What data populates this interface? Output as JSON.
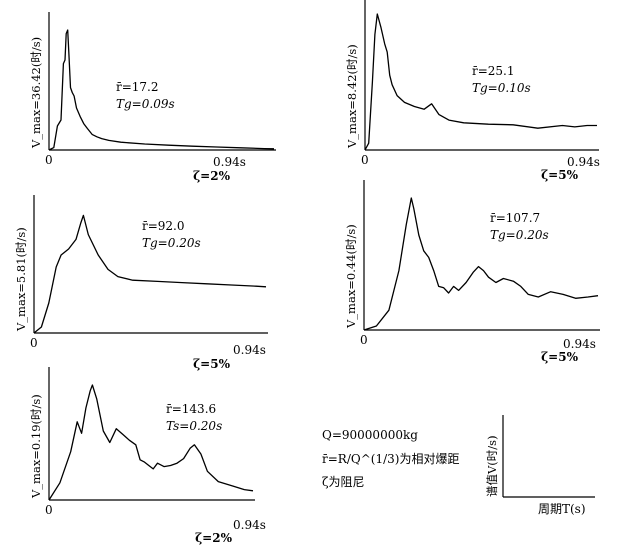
{
  "chart_data": [
    {
      "type": "line",
      "ylabel": "V_max=36.42(时/s)",
      "origin_label": "0",
      "x_end_label": "0.94s",
      "zeta_label": "ζ=2%",
      "annot_r": "r̄=17.2",
      "annot_T": "Tg=0.09s",
      "x_range": [
        0,
        0.94
      ],
      "y_range": [
        0,
        1
      ],
      "points": [
        [
          0,
          0
        ],
        [
          0.02,
          0.02
        ],
        [
          0.035,
          0.2
        ],
        [
          0.05,
          0.25
        ],
        [
          0.06,
          0.72
        ],
        [
          0.067,
          0.75
        ],
        [
          0.072,
          0.97
        ],
        [
          0.078,
          1.0
        ],
        [
          0.083,
          0.8
        ],
        [
          0.09,
          0.52
        ],
        [
          0.097,
          0.48
        ],
        [
          0.105,
          0.45
        ],
        [
          0.115,
          0.35
        ],
        [
          0.13,
          0.28
        ],
        [
          0.145,
          0.22
        ],
        [
          0.16,
          0.18
        ],
        [
          0.18,
          0.13
        ],
        [
          0.2,
          0.11
        ],
        [
          0.22,
          0.095
        ],
        [
          0.25,
          0.08
        ],
        [
          0.3,
          0.065
        ],
        [
          0.4,
          0.05
        ],
        [
          0.5,
          0.04
        ],
        [
          0.6,
          0.032
        ],
        [
          0.7,
          0.025
        ],
        [
          0.8,
          0.018
        ],
        [
          0.9,
          0.012
        ],
        [
          0.94,
          0.01
        ]
      ]
    },
    {
      "type": "line",
      "ylabel": "V_max=8.42(时/s)",
      "origin_label": "0",
      "x_end_label": "0.94s",
      "zeta_label": "ζ=5%",
      "annot_r": "r̄=25.1",
      "annot_T": "Tg=0.10s",
      "x_range": [
        0,
        0.94
      ],
      "y_range": [
        0,
        1
      ],
      "points": [
        [
          0,
          0
        ],
        [
          0.015,
          0.05
        ],
        [
          0.03,
          0.5
        ],
        [
          0.04,
          0.85
        ],
        [
          0.05,
          1.0
        ],
        [
          0.065,
          0.9
        ],
        [
          0.08,
          0.78
        ],
        [
          0.09,
          0.72
        ],
        [
          0.1,
          0.55
        ],
        [
          0.11,
          0.48
        ],
        [
          0.13,
          0.4
        ],
        [
          0.16,
          0.35
        ],
        [
          0.2,
          0.32
        ],
        [
          0.24,
          0.3
        ],
        [
          0.27,
          0.34
        ],
        [
          0.3,
          0.26
        ],
        [
          0.34,
          0.22
        ],
        [
          0.4,
          0.2
        ],
        [
          0.5,
          0.19
        ],
        [
          0.6,
          0.185
        ],
        [
          0.7,
          0.16
        ],
        [
          0.8,
          0.18
        ],
        [
          0.85,
          0.17
        ],
        [
          0.9,
          0.18
        ],
        [
          0.94,
          0.18
        ]
      ]
    },
    {
      "type": "line",
      "ylabel": "V_max=5.81(时/s)",
      "origin_label": "0",
      "x_end_label": "0.94s",
      "zeta_label": "ζ=5%",
      "annot_r": "r̄=92.0",
      "annot_T": "Tg=0.20s",
      "x_range": [
        0,
        0.94
      ],
      "y_range": [
        0,
        1
      ],
      "points": [
        [
          0,
          0
        ],
        [
          0.03,
          0.05
        ],
        [
          0.06,
          0.25
        ],
        [
          0.09,
          0.55
        ],
        [
          0.11,
          0.65
        ],
        [
          0.14,
          0.7
        ],
        [
          0.17,
          0.78
        ],
        [
          0.19,
          0.92
        ],
        [
          0.2,
          0.98
        ],
        [
          0.22,
          0.82
        ],
        [
          0.26,
          0.65
        ],
        [
          0.3,
          0.53
        ],
        [
          0.34,
          0.47
        ],
        [
          0.4,
          0.44
        ],
        [
          0.5,
          0.43
        ],
        [
          0.6,
          0.42
        ],
        [
          0.7,
          0.41
        ],
        [
          0.8,
          0.4
        ],
        [
          0.9,
          0.39
        ],
        [
          0.94,
          0.385
        ]
      ]
    },
    {
      "type": "line",
      "ylabel": "V_max=0.44(时/s)",
      "origin_label": "0",
      "x_end_label": "0.94s",
      "zeta_label": "ζ=5%",
      "annot_r": "r̄=107.7",
      "annot_T": "Tg=0.20s",
      "x_range": [
        0,
        0.94
      ],
      "y_range": [
        0,
        1
      ],
      "points": [
        [
          0,
          0
        ],
        [
          0.05,
          0.03
        ],
        [
          0.1,
          0.15
        ],
        [
          0.14,
          0.45
        ],
        [
          0.17,
          0.8
        ],
        [
          0.19,
          1.0
        ],
        [
          0.2,
          0.92
        ],
        [
          0.22,
          0.72
        ],
        [
          0.24,
          0.6
        ],
        [
          0.26,
          0.55
        ],
        [
          0.28,
          0.45
        ],
        [
          0.3,
          0.33
        ],
        [
          0.32,
          0.32
        ],
        [
          0.34,
          0.28
        ],
        [
          0.36,
          0.33
        ],
        [
          0.38,
          0.3
        ],
        [
          0.41,
          0.36
        ],
        [
          0.44,
          0.44
        ],
        [
          0.46,
          0.48
        ],
        [
          0.48,
          0.45
        ],
        [
          0.5,
          0.4
        ],
        [
          0.53,
          0.36
        ],
        [
          0.56,
          0.39
        ],
        [
          0.6,
          0.37
        ],
        [
          0.63,
          0.33
        ],
        [
          0.66,
          0.27
        ],
        [
          0.7,
          0.25
        ],
        [
          0.75,
          0.29
        ],
        [
          0.8,
          0.27
        ],
        [
          0.85,
          0.24
        ],
        [
          0.9,
          0.25
        ],
        [
          0.94,
          0.26
        ]
      ]
    },
    {
      "type": "line",
      "ylabel": "V_max=0.19(时/s)",
      "origin_label": "0",
      "x_end_label": "0.94s",
      "zeta_label": "ζ=2%",
      "annot_r": "r̄=143.6",
      "annot_T": "Ts=0.20s",
      "x_range": [
        0,
        0.94
      ],
      "y_range": [
        0,
        1
      ],
      "points": [
        [
          0,
          0
        ],
        [
          0.05,
          0.15
        ],
        [
          0.1,
          0.42
        ],
        [
          0.13,
          0.68
        ],
        [
          0.15,
          0.58
        ],
        [
          0.17,
          0.8
        ],
        [
          0.19,
          0.95
        ],
        [
          0.2,
          1.0
        ],
        [
          0.22,
          0.88
        ],
        [
          0.25,
          0.6
        ],
        [
          0.28,
          0.5
        ],
        [
          0.31,
          0.62
        ],
        [
          0.34,
          0.57
        ],
        [
          0.37,
          0.52
        ],
        [
          0.4,
          0.48
        ],
        [
          0.42,
          0.35
        ],
        [
          0.44,
          0.33
        ],
        [
          0.46,
          0.3
        ],
        [
          0.48,
          0.27
        ],
        [
          0.5,
          0.32
        ],
        [
          0.53,
          0.29
        ],
        [
          0.56,
          0.3
        ],
        [
          0.59,
          0.32
        ],
        [
          0.62,
          0.36
        ],
        [
          0.65,
          0.45
        ],
        [
          0.67,
          0.48
        ],
        [
          0.7,
          0.4
        ],
        [
          0.73,
          0.25
        ],
        [
          0.78,
          0.16
        ],
        [
          0.85,
          0.12
        ],
        [
          0.9,
          0.09
        ],
        [
          0.94,
          0.08
        ]
      ]
    }
  ],
  "legend": {
    "q_line": "Q=90000000kg",
    "r_line": "r̄=R/Q^(1/3)为相对爆距",
    "zeta_line": "ζ为阻尼",
    "ylabel": "谱值V(时/s)",
    "xlabel": "周期T(s)"
  }
}
